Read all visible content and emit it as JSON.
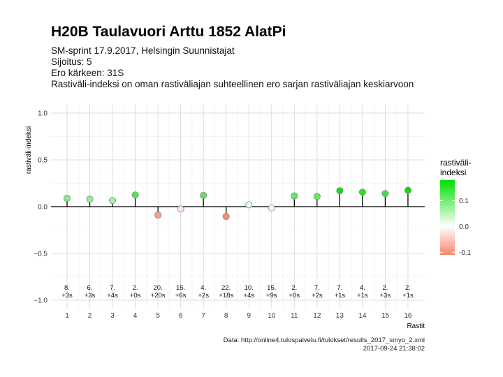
{
  "header": {
    "title": "H20B Taulavuori Arttu 1852 AlatPi",
    "lines": [
      "SM-sprint 17.9.2017, Helsingin Suunnistajat",
      "Sijoitus: 5",
      "Ero kärkeen: 31S",
      "Rastiväli-indeksi on oman rastiväliajan suhteellinen ero sarjan rastiväliajan keskiarvoon"
    ]
  },
  "chart_data": {
    "type": "scatter",
    "style": "lollipop",
    "x": [
      1,
      2,
      3,
      4,
      5,
      6,
      7,
      8,
      9,
      10,
      11,
      12,
      13,
      14,
      15,
      16
    ],
    "y": [
      0.09,
      0.08,
      0.065,
      0.125,
      -0.09,
      -0.025,
      0.12,
      -0.105,
      0.02,
      -0.015,
      0.115,
      0.11,
      0.17,
      0.155,
      0.14,
      0.175
    ],
    "leg_labels": [
      [
        "8.",
        "+3s"
      ],
      [
        "6.",
        "+3s"
      ],
      [
        "7.",
        "+4s"
      ],
      [
        "2.",
        "+0s"
      ],
      [
        "20.",
        "+20s"
      ],
      [
        "15.",
        "+6s"
      ],
      [
        "4.",
        "+2s"
      ],
      [
        "22.",
        "+18s"
      ],
      [
        "10.",
        "+4s"
      ],
      [
        "15.",
        "+9s"
      ],
      [
        "2.",
        "+0s"
      ],
      [
        "7.",
        "+2s"
      ],
      [
        "7.",
        "+1s"
      ],
      [
        "4.",
        "+1s"
      ],
      [
        "2.",
        "+3s"
      ],
      [
        "2.",
        "+1s"
      ]
    ],
    "xlabel": "Rastit",
    "ylabel": "rastiväli-indeksi",
    "ylim": [
      -1.0,
      1.0
    ],
    "yticks": [
      -1.0,
      -0.5,
      0.0,
      0.5,
      1.0
    ],
    "ytick_labels": [
      "−1.0",
      "−0.5",
      "0.0",
      "0.5",
      "1.0"
    ],
    "grid": true,
    "legend": {
      "title": "rastiväli-\nindeksi",
      "position": "right",
      "ticks": [
        0.1,
        0.0,
        -0.1
      ],
      "tick_labels": [
        "0.1",
        "0.0",
        "-0.1"
      ],
      "range": [
        -0.11,
        0.18
      ],
      "colors": {
        "high": "#00e000",
        "mid": "#ffffff",
        "low": "#f8866c"
      }
    }
  },
  "caption": {
    "data_source": "Data: http://online4.tulospalvelu.fi/tulokset/results_2017_smyo_2.xml",
    "timestamp": "2017-09-24 21:38:02"
  }
}
